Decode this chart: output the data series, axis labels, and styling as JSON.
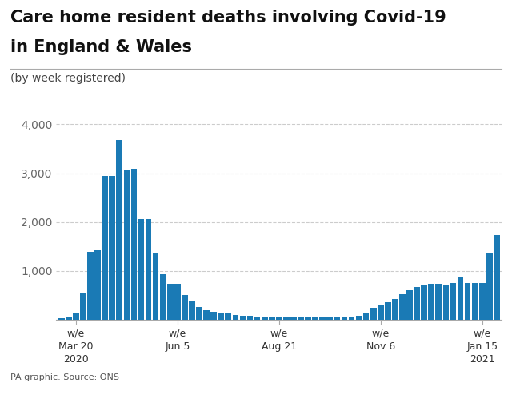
{
  "title_line1": "Care home resident deaths involving Covid-19",
  "title_line2": "in England & Wales",
  "subtitle": "(by week registered)",
  "source": "PA graphic. Source: ONS",
  "bar_color": "#1a7ab5",
  "background_color": "#ffffff",
  "ylim": [
    0,
    4200
  ],
  "yticks": [
    0,
    1000,
    2000,
    3000,
    4000
  ],
  "ytick_labels": [
    "",
    "1,000",
    "2,000",
    "3,000",
    "4,000"
  ],
  "values": [
    30,
    60,
    130,
    560,
    1400,
    1430,
    2950,
    2950,
    3680,
    3080,
    3090,
    2070,
    2070,
    1370,
    930,
    740,
    730,
    510,
    380,
    270,
    200,
    170,
    150,
    130,
    100,
    80,
    80,
    70,
    70,
    60,
    60,
    60,
    60,
    55,
    55,
    55,
    55,
    55,
    55,
    55,
    60,
    80,
    140,
    250,
    290,
    360,
    430,
    530,
    600,
    680,
    710,
    730,
    730,
    720,
    760,
    870,
    760,
    760,
    760,
    1370,
    1740
  ],
  "tick_positions": [
    2,
    16,
    30,
    44,
    58
  ],
  "tick_labels": [
    "w/e\nMar 20\n2020",
    "w/e\nJun 5",
    "w/e\nAug 21",
    "w/e\nNov 6",
    "w/e\nJan 15\n2021"
  ],
  "title_fontsize": 15,
  "subtitle_fontsize": 10,
  "source_fontsize": 8,
  "ytick_fontsize": 10,
  "xtick_fontsize": 9
}
